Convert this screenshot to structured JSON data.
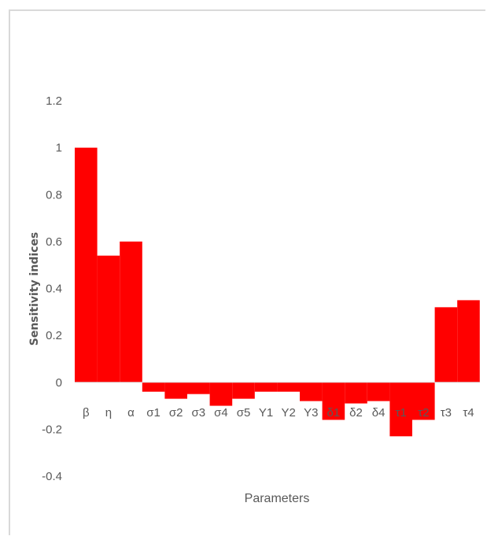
{
  "chart_data": {
    "type": "bar",
    "xlabel": "Parameters",
    "ylabel": "Sensitivity indices",
    "ylim": [
      -0.4,
      1.2
    ],
    "yticks": [
      1.2,
      1,
      0.8,
      0.6,
      0.4,
      0.2,
      0,
      -0.2,
      -0.4
    ],
    "ytick_labels": [
      "1.2",
      "1",
      "0.8",
      "0.6",
      "0.4",
      "0.2",
      "0",
      "-0.2",
      "-0.4"
    ],
    "grid": false,
    "bar_color": "#ff0000",
    "categories": [
      "β",
      "η",
      "α",
      "σ1",
      "σ2",
      "σ3",
      "σ4",
      "σ5",
      "Υ1",
      "Υ2",
      "Υ3",
      "δ1",
      "δ2",
      "δ4",
      "τ1",
      "τ2",
      "τ3",
      "τ4"
    ],
    "values": [
      1.0,
      0.54,
      0.6,
      -0.04,
      -0.07,
      -0.05,
      -0.1,
      -0.07,
      -0.04,
      -0.04,
      -0.08,
      -0.16,
      -0.09,
      -0.08,
      -0.23,
      -0.16,
      0.32,
      0.35
    ]
  }
}
